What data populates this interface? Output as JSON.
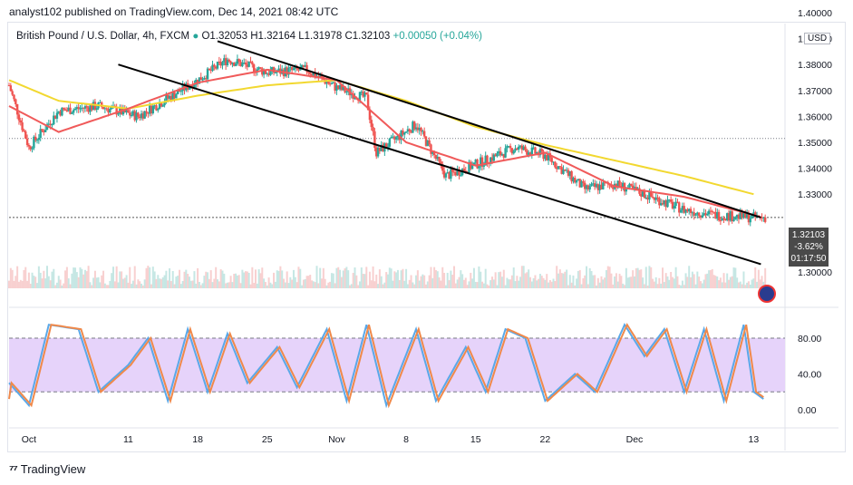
{
  "header": {
    "publisher": "analyst102 published on TradingView.com, Dec 14, 2021 08:42 UTC"
  },
  "legend": {
    "symbol": "British Pound / U.S. Dollar, 4h, FXCM",
    "open": "O1.32053",
    "high": "H1.32164",
    "low": "L1.31978",
    "close": "C1.32103",
    "change": "+0.00050 (+0.04%)"
  },
  "price_axis": {
    "currency": "USD",
    "ticks": [
      "1.40000",
      "1.39000",
      "1.38000",
      "1.37000",
      "1.36000",
      "1.35000",
      "1.34000",
      "1.33000",
      "1.30000"
    ]
  },
  "price_tag": {
    "price": "1.32103",
    "change_pct": "-3.62%",
    "countdown": "01:17:50"
  },
  "stoch_axis": {
    "ticks": [
      "80.00",
      "40.00",
      "0.00"
    ]
  },
  "time_axis": {
    "ticks": [
      "Oct",
      "11",
      "18",
      "25",
      "Nov",
      "8",
      "15",
      "22",
      "Dec",
      "13"
    ]
  },
  "footer": {
    "brand": "TradingView"
  },
  "colors": {
    "up": "#26a69a",
    "down": "#ef5350",
    "ema_fast": "#f05a5a",
    "ema_slow": "#f2d830",
    "stoch_k": "#5aa8e8",
    "stoch_d": "#f0894a",
    "band": "#e6d3fa",
    "trend": "#000000"
  },
  "chart_data": {
    "type": "candlestick",
    "symbol": "GBPUSD",
    "timeframe": "4h",
    "ylim": [
      1.2955,
      1.4
    ],
    "channel_upper": [
      [
        "2021-10-20",
        1.389
      ],
      [
        "2021-12-13",
        1.321
      ]
    ],
    "channel_lower": [
      [
        "2021-10-10",
        1.38
      ],
      [
        "2021-12-13",
        1.303
      ]
    ],
    "ema_fast_anchors": [
      [
        "2021-09-29",
        1.364
      ],
      [
        "2021-10-04",
        1.354
      ],
      [
        "2021-10-11",
        1.363
      ],
      [
        "2021-10-18",
        1.373
      ],
      [
        "2021-10-25",
        1.378
      ],
      [
        "2021-11-01",
        1.374
      ],
      [
        "2021-11-08",
        1.35
      ],
      [
        "2021-11-15",
        1.341
      ],
      [
        "2021-11-22",
        1.346
      ],
      [
        "2021-11-29",
        1.333
      ],
      [
        "2021-12-06",
        1.329
      ],
      [
        "2021-12-13",
        1.322
      ]
    ],
    "ema_slow_anchors": [
      [
        "2021-09-29",
        1.374
      ],
      [
        "2021-10-04",
        1.366
      ],
      [
        "2021-10-11",
        1.363
      ],
      [
        "2021-10-18",
        1.368
      ],
      [
        "2021-10-25",
        1.372
      ],
      [
        "2021-11-01",
        1.374
      ],
      [
        "2021-11-08",
        1.366
      ],
      [
        "2021-11-15",
        1.356
      ],
      [
        "2021-11-22",
        1.349
      ],
      [
        "2021-11-29",
        1.343
      ],
      [
        "2021-12-06",
        1.337
      ],
      [
        "2021-12-13",
        1.33
      ]
    ],
    "close_path_anchors": [
      [
        "2021-09-29",
        1.372
      ],
      [
        "2021-10-01",
        1.348
      ],
      [
        "2021-10-04",
        1.362
      ],
      [
        "2021-10-08",
        1.364
      ],
      [
        "2021-10-12",
        1.36
      ],
      [
        "2021-10-18",
        1.374
      ],
      [
        "2021-10-21",
        1.382
      ],
      [
        "2021-10-25",
        1.377
      ],
      [
        "2021-10-29",
        1.378
      ],
      [
        "2021-11-01",
        1.371
      ],
      [
        "2021-11-04",
        1.367
      ],
      [
        "2021-11-05",
        1.346
      ],
      [
        "2021-11-09",
        1.357
      ],
      [
        "2021-11-12",
        1.337
      ],
      [
        "2021-11-16",
        1.343
      ],
      [
        "2021-11-19",
        1.348
      ],
      [
        "2021-11-22",
        1.345
      ],
      [
        "2021-11-26",
        1.332
      ],
      [
        "2021-11-29",
        1.334
      ],
      [
        "2021-12-02",
        1.33
      ],
      [
        "2021-12-06",
        1.324
      ],
      [
        "2021-12-09",
        1.322
      ],
      [
        "2021-12-13",
        1.321
      ]
    ],
    "stoch_k_anchors": [
      [
        "2021-09-29",
        30
      ],
      [
        "2021-10-01",
        5
      ],
      [
        "2021-10-03",
        95
      ],
      [
        "2021-10-06",
        90
      ],
      [
        "2021-10-08",
        20
      ],
      [
        "2021-10-11",
        50
      ],
      [
        "2021-10-13",
        80
      ],
      [
        "2021-10-15",
        10
      ],
      [
        "2021-10-17",
        90
      ],
      [
        "2021-10-19",
        20
      ],
      [
        "2021-10-21",
        85
      ],
      [
        "2021-10-23",
        30
      ],
      [
        "2021-10-26",
        70
      ],
      [
        "2021-10-28",
        25
      ],
      [
        "2021-10-31",
        90
      ],
      [
        "2021-11-02",
        10
      ],
      [
        "2021-11-04",
        95
      ],
      [
        "2021-11-06",
        5
      ],
      [
        "2021-11-09",
        90
      ],
      [
        "2021-11-11",
        10
      ],
      [
        "2021-11-14",
        70
      ],
      [
        "2021-11-16",
        20
      ],
      [
        "2021-11-18",
        90
      ],
      [
        "2021-11-20",
        80
      ],
      [
        "2021-11-22",
        10
      ],
      [
        "2021-11-25",
        40
      ],
      [
        "2021-11-27",
        20
      ],
      [
        "2021-11-30",
        95
      ],
      [
        "2021-12-02",
        60
      ],
      [
        "2021-12-04",
        90
      ],
      [
        "2021-12-06",
        20
      ],
      [
        "2021-12-08",
        90
      ],
      [
        "2021-12-10",
        10
      ],
      [
        "2021-12-12",
        95
      ],
      [
        "2021-12-13",
        20
      ],
      [
        "2021-12-14",
        12
      ]
    ],
    "stoch_band": [
      20,
      80
    ]
  }
}
